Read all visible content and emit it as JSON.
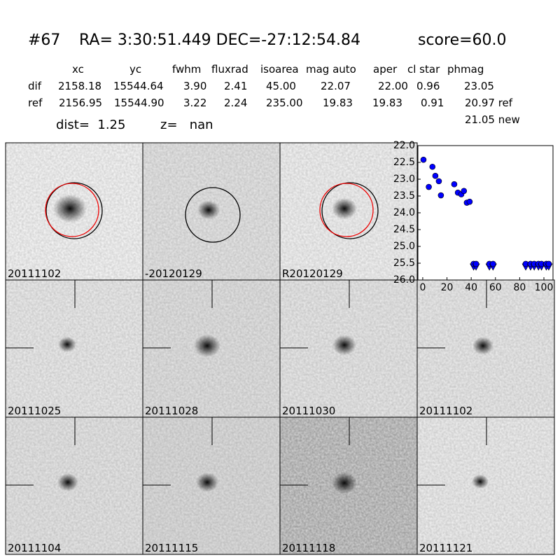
{
  "header": {
    "id": "#67",
    "coords": "RA= 3:30:51.449 DEC=-27:12:54.84",
    "score": "score=60.0",
    "columns": [
      "xc",
      "yc",
      "fwhm",
      "fluxrad",
      "isoarea",
      "mag auto",
      "aper",
      "cl star",
      "phmag"
    ],
    "rows": [
      [
        "dif",
        "2158.18",
        "15544.64",
        "3.90",
        "2.41",
        "45.00",
        "22.07",
        "22.00",
        "0.96",
        "23.05"
      ],
      [
        "ref",
        "2156.95",
        "15544.90",
        "3.22",
        "2.24",
        "235.00",
        "19.83",
        "19.83",
        "0.91",
        "20.97 ref"
      ]
    ],
    "extra": "21.05 new",
    "dist": "dist=  1.25",
    "z": "z=   nan"
  },
  "panels": [
    {
      "label": "20111102"
    },
    {
      "label": "-20120129"
    },
    {
      "label": "R20120129"
    },
    {
      "label": "20111025"
    },
    {
      "label": "20111028"
    },
    {
      "label": "20111030"
    },
    {
      "label": "20111102",
      "color": "#ff0000"
    },
    {
      "label": "20111104"
    },
    {
      "label": "20111115"
    },
    {
      "label": "20111118"
    },
    {
      "label": "20111121"
    }
  ],
  "chart_data": {
    "type": "scatter",
    "series": [
      {
        "marker": "o",
        "color": "#0000ff",
        "x": [
          0.6,
          5,
          8,
          10.4,
          13.3,
          15,
          26,
          29,
          31.8,
          34,
          36.4,
          38.7
        ],
        "values": [
          22.42,
          23.23,
          22.63,
          22.9,
          23.06,
          23.48,
          23.15,
          23.4,
          23.45,
          23.35,
          23.7,
          23.67
        ]
      },
      {
        "marker": "v",
        "color": "#0000ff",
        "x": [
          42,
          44,
          55,
          58,
          85,
          89,
          92,
          95.5,
          98,
          102,
          104
        ],
        "values": [
          25.52,
          25.52,
          25.52,
          25.52,
          25.52,
          25.52,
          25.52,
          25.52,
          25.52,
          25.52,
          25.52
        ]
      }
    ],
    "xlim": [
      -4,
      107.5
    ],
    "xticks": [
      0,
      20,
      40,
      60,
      80,
      100
    ],
    "ylim": [
      26.0,
      22.0
    ],
    "yticks": [
      {
        "value": 22.0,
        "label": "22.0"
      },
      {
        "value": 22.5,
        "label": "22.5"
      },
      {
        "value": 23.0,
        "label": "23.0"
      },
      {
        "value": 23.5,
        "label": "23.5"
      },
      {
        "value": 24.0,
        "label": "24.0"
      },
      {
        "value": 24.5,
        "label": "24.5"
      },
      {
        "value": 25.0,
        "label": "25.0"
      },
      {
        "value": 25.5,
        "label": "25.5"
      },
      {
        "value": 26.0,
        "label": "26.0"
      }
    ]
  }
}
